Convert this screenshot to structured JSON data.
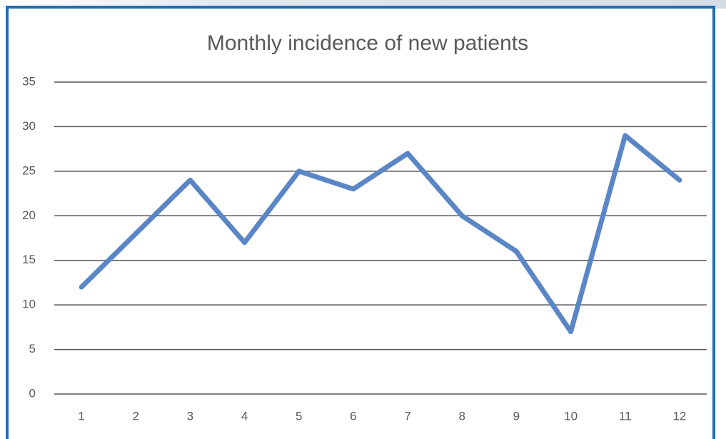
{
  "chart_data": {
    "type": "line",
    "title": "Monthly incidence of new patients",
    "categories": [
      "1",
      "2",
      "3",
      "4",
      "5",
      "6",
      "7",
      "8",
      "9",
      "10",
      "11",
      "12"
    ],
    "series": [
      {
        "name": "New patients",
        "color": "#5b86c6",
        "values": [
          12,
          18,
          24,
          17,
          25,
          23,
          27,
          20,
          16,
          7,
          29,
          24
        ]
      }
    ],
    "ylim": [
      0,
      35
    ],
    "yticks": [
      0,
      5,
      10,
      15,
      20,
      25,
      30,
      35
    ],
    "grid": true
  }
}
